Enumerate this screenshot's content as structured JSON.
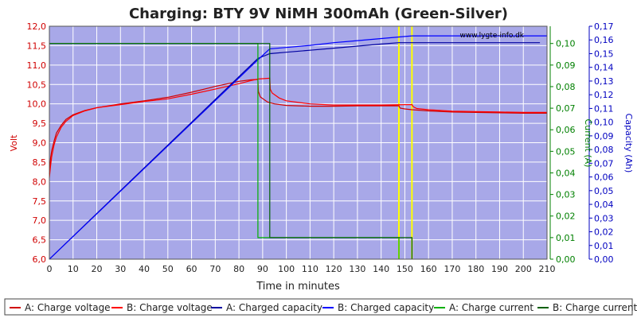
{
  "chart_data": {
    "type": "line",
    "title": "Charging: BTY 9V NiMH 300mAh (Green-Silver)",
    "watermark": "www.lygte-info.dk",
    "xlabel": "Time in minutes",
    "xlim": [
      0,
      210
    ],
    "x_ticks": [
      0,
      10,
      20,
      30,
      40,
      50,
      60,
      70,
      80,
      90,
      100,
      110,
      120,
      130,
      140,
      150,
      160,
      170,
      180,
      190,
      200,
      210
    ],
    "grid": true,
    "legend_position": "bottom",
    "axes": {
      "volt": {
        "label": "Volt",
        "color": "#d00000",
        "lim": [
          6.0,
          12.0
        ],
        "side": "left",
        "ticks": [
          "6,0",
          "6,5",
          "7,0",
          "7,5",
          "8,0",
          "8,5",
          "9,0",
          "9,5",
          "10,0",
          "10,5",
          "11,0",
          "11,5",
          "12,0"
        ]
      },
      "current": {
        "label": "Current (A)",
        "color": "#008000",
        "lim": [
          0,
          0.108
        ],
        "side": "right",
        "ticks": [
          "0,00",
          "0,01",
          "0,02",
          "0,03",
          "0,04",
          "0,05",
          "0,06",
          "0,07",
          "0,08",
          "0,09",
          "0,10"
        ]
      },
      "capacity": {
        "label": "Capacity (Ah)",
        "color": "#0000c0",
        "lim": [
          0,
          0.17
        ],
        "side": "right",
        "ticks": [
          "0,00",
          "0,01",
          "0,02",
          "0,03",
          "0,04",
          "0,05",
          "0,06",
          "0,07",
          "0,08",
          "0,09",
          "0,10",
          "0,11",
          "0,12",
          "0,13",
          "0,14",
          "0,15",
          "0,16",
          "0,17"
        ]
      }
    },
    "series": [
      {
        "name": "A: Charge voltage",
        "axis": "volt",
        "color": "#d00000",
        "x": [
          0,
          0.5,
          1,
          2,
          3,
          5,
          7,
          10,
          15,
          20,
          30,
          40,
          50,
          60,
          70,
          80,
          85,
          88,
          88.2,
          89,
          92,
          95,
          100,
          110,
          120,
          130,
          140,
          147.5,
          148,
          150,
          153,
          160,
          170,
          180,
          190,
          200,
          210
        ],
        "y": [
          8.2,
          8.6,
          8.8,
          9.05,
          9.25,
          9.45,
          9.6,
          9.72,
          9.83,
          9.9,
          10.0,
          10.08,
          10.17,
          10.3,
          10.45,
          10.58,
          10.62,
          10.63,
          10.32,
          10.18,
          10.05,
          10.0,
          9.96,
          9.94,
          9.94,
          9.95,
          9.95,
          9.95,
          9.89,
          9.87,
          9.85,
          9.82,
          9.79,
          9.78,
          9.77,
          9.76,
          9.76
        ]
      },
      {
        "name": "B: Charge voltage",
        "axis": "volt",
        "color": "#ff0000",
        "x": [
          0,
          0.5,
          1,
          2,
          3,
          5,
          7,
          10,
          15,
          20,
          30,
          40,
          50,
          60,
          70,
          80,
          85,
          88,
          93,
          93.2,
          94,
          97,
          100,
          110,
          120,
          130,
          140,
          150,
          153,
          153.5,
          155,
          160,
          170,
          180,
          190,
          200,
          210
        ],
        "y": [
          8.1,
          8.4,
          8.65,
          8.95,
          9.15,
          9.4,
          9.55,
          9.7,
          9.82,
          9.9,
          9.98,
          10.06,
          10.13,
          10.25,
          10.38,
          10.52,
          10.6,
          10.64,
          10.66,
          10.38,
          10.28,
          10.15,
          10.08,
          10.0,
          9.97,
          9.97,
          9.97,
          9.98,
          9.98,
          9.93,
          9.88,
          9.85,
          9.81,
          9.8,
          9.79,
          9.78,
          9.78
        ]
      },
      {
        "name": "A: Charged capacity",
        "axis": "capacity",
        "color": "#0000a0",
        "x": [
          0,
          88,
          93,
          100,
          110,
          120,
          130,
          140,
          147.5,
          150,
          160,
          170,
          180,
          190,
          200,
          207
        ],
        "y": [
          0,
          0.1465,
          0.15,
          0.151,
          0.1525,
          0.154,
          0.1555,
          0.157,
          0.158,
          0.158,
          0.158,
          0.158,
          0.158,
          0.158,
          0.158,
          0.158
        ]
      },
      {
        "name": "B: Charged capacity",
        "axis": "capacity",
        "color": "#0000ff",
        "x": [
          0,
          88,
          93,
          100,
          110,
          120,
          130,
          140,
          150,
          153,
          160,
          170,
          180,
          190,
          200,
          210
        ],
        "y": [
          0,
          0.1455,
          0.1535,
          0.1545,
          0.156,
          0.158,
          0.1595,
          0.161,
          0.1625,
          0.163,
          0.163,
          0.163,
          0.163,
          0.163,
          0.163,
          0.163
        ]
      },
      {
        "name": "A: Charge current",
        "axis": "current",
        "color": "#00b000",
        "x": [
          0,
          88,
          88,
          147.5,
          147.5
        ],
        "y": [
          0.1,
          0.1,
          0.01,
          0.01,
          0
        ]
      },
      {
        "name": "B: Charge current",
        "axis": "current",
        "color": "#006000",
        "x": [
          0,
          93,
          93,
          153,
          153
        ],
        "y": [
          0.1,
          0.1,
          0.01,
          0.01,
          0
        ]
      }
    ],
    "markers": [
      {
        "x": 147.5,
        "color": "#ffff00"
      },
      {
        "x": 153,
        "color": "#ffff00"
      }
    ]
  }
}
